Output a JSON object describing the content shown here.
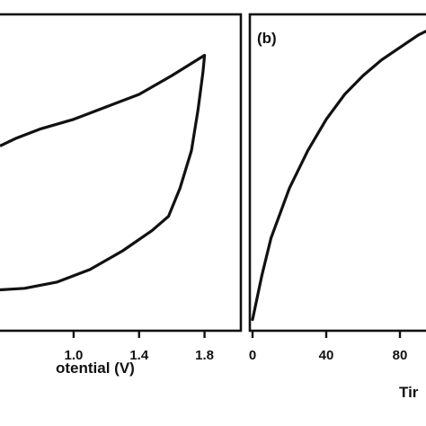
{
  "chart_data": [
    {
      "type": "line",
      "panel_label": "",
      "xlabel": "Potential (V)",
      "xlabel_visible": "otential (V)",
      "ylabel": "",
      "xlim": [
        0.55,
        2.0
      ],
      "ylim": [
        0,
        1
      ],
      "x_ticks": [
        "1.0",
        "1.4",
        "1.8"
      ],
      "x_tick_values": [
        1.0,
        1.4,
        1.8
      ],
      "grid": false,
      "series": [
        {
          "name": "",
          "closed": true,
          "points": [
            [
              0.55,
              0.585
            ],
            [
              0.65,
              0.61
            ],
            [
              0.8,
              0.64
            ],
            [
              1.0,
              0.67
            ],
            [
              1.2,
              0.71
            ],
            [
              1.4,
              0.75
            ],
            [
              1.6,
              0.81
            ],
            [
              1.8,
              0.875
            ],
            [
              1.79,
              0.82
            ],
            [
              1.76,
              0.7
            ],
            [
              1.72,
              0.57
            ],
            [
              1.65,
              0.45
            ],
            [
              1.58,
              0.36
            ],
            [
              1.48,
              0.315
            ],
            [
              1.3,
              0.25
            ],
            [
              1.1,
              0.19
            ],
            [
              0.9,
              0.15
            ],
            [
              0.7,
              0.13
            ],
            [
              0.55,
              0.125
            ]
          ]
        }
      ]
    },
    {
      "type": "line",
      "panel_label": "(b)",
      "xlabel": "Time",
      "xlabel_visible": "Tir",
      "ylabel": "",
      "xlim": [
        0,
        100
      ],
      "ylim": [
        0,
        1
      ],
      "x_ticks": [
        "0",
        "40",
        "80"
      ],
      "x_tick_values": [
        0,
        40,
        80
      ],
      "grid": false,
      "series": [
        {
          "name": "",
          "points": [
            [
              0,
              0.03
            ],
            [
              5,
              0.17
            ],
            [
              10,
              0.29
            ],
            [
              20,
              0.45
            ],
            [
              30,
              0.57
            ],
            [
              40,
              0.67
            ],
            [
              50,
              0.75
            ],
            [
              60,
              0.81
            ],
            [
              70,
              0.86
            ],
            [
              80,
              0.9
            ],
            [
              90,
              0.94
            ],
            [
              97,
              0.96
            ]
          ]
        }
      ]
    }
  ]
}
